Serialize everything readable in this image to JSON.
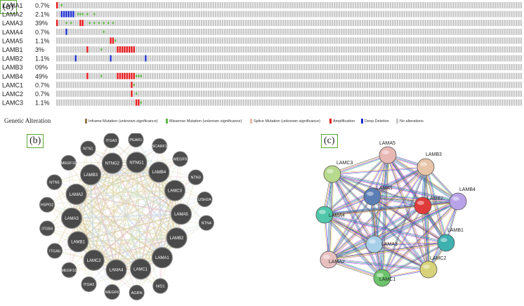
{
  "panels": {
    "a": "(a)",
    "b": "(b)",
    "c": "(c)"
  },
  "oncoprint": {
    "genes": [
      {
        "name": "LAMA1",
        "pct": "0.7%",
        "alts": [
          {
            "pos": 0,
            "type": "amp"
          },
          {
            "pos": 2,
            "type": "missense"
          }
        ]
      },
      {
        "name": "LAMA2",
        "pct": "2.1%",
        "alts": [
          {
            "pos": 2,
            "type": "deep"
          },
          {
            "pos": 3,
            "type": "deep"
          },
          {
            "pos": 4,
            "type": "deep"
          },
          {
            "pos": 5,
            "type": "deep"
          },
          {
            "pos": 6,
            "type": "deep"
          },
          {
            "pos": 7,
            "type": "deep"
          },
          {
            "pos": 9,
            "type": "missense"
          },
          {
            "pos": 10,
            "type": "missense"
          },
          {
            "pos": 11,
            "type": "missense"
          },
          {
            "pos": 13,
            "type": "missense"
          },
          {
            "pos": 16,
            "type": "missense"
          }
        ]
      },
      {
        "name": "LAMA3",
        "pct": "39%",
        "alts": [
          {
            "pos": 0,
            "type": "amp"
          },
          {
            "pos": 4,
            "type": "missense"
          },
          {
            "pos": 6,
            "type": "missense"
          },
          {
            "pos": 10,
            "type": "amp"
          },
          {
            "pos": 11,
            "type": "amp"
          },
          {
            "pos": 14,
            "type": "missense"
          },
          {
            "pos": 16,
            "type": "missense"
          },
          {
            "pos": 18,
            "type": "missense"
          },
          {
            "pos": 20,
            "type": "missense"
          },
          {
            "pos": 22,
            "type": "missense"
          },
          {
            "pos": 24,
            "type": "missense"
          }
        ]
      },
      {
        "name": "LAMA4",
        "pct": "0.7%",
        "alts": [
          {
            "pos": 4,
            "type": "deep"
          },
          {
            "pos": 20,
            "type": "missense"
          }
        ]
      },
      {
        "name": "LAMA5",
        "pct": "1.1%",
        "alts": [
          {
            "pos": 23,
            "type": "amp"
          },
          {
            "pos": 24,
            "type": "amp"
          },
          {
            "pos": 25,
            "type": "missense"
          }
        ]
      },
      {
        "name": "LAMB1",
        "pct": "3%",
        "alts": [
          {
            "pos": 13,
            "type": "amp"
          },
          {
            "pos": 19,
            "type": "missense"
          },
          {
            "pos": 26,
            "type": "amp"
          },
          {
            "pos": 27,
            "type": "amp"
          },
          {
            "pos": 28,
            "type": "amp"
          },
          {
            "pos": 29,
            "type": "amp"
          },
          {
            "pos": 30,
            "type": "amp"
          },
          {
            "pos": 31,
            "type": "amp"
          },
          {
            "pos": 32,
            "type": "amp"
          },
          {
            "pos": 33,
            "type": "amp"
          }
        ]
      },
      {
        "name": "LAMB2",
        "pct": "1.1%",
        "alts": [
          {
            "pos": 8,
            "type": "deep"
          },
          {
            "pos": 23,
            "type": "deep"
          },
          {
            "pos": 38,
            "type": "deep"
          }
        ]
      },
      {
        "name": "LAMB3",
        "pct": "09%",
        "alts": []
      },
      {
        "name": "LAMB4",
        "pct": "49%",
        "alts": [
          {
            "pos": 13,
            "type": "amp"
          },
          {
            "pos": 19,
            "type": "missense"
          },
          {
            "pos": 26,
            "type": "amp"
          },
          {
            "pos": 27,
            "type": "amp"
          },
          {
            "pos": 28,
            "type": "amp"
          },
          {
            "pos": 29,
            "type": "amp"
          },
          {
            "pos": 30,
            "type": "amp"
          },
          {
            "pos": 31,
            "type": "amp"
          },
          {
            "pos": 32,
            "type": "amp"
          },
          {
            "pos": 33,
            "type": "amp"
          },
          {
            "pos": 34,
            "type": "missense"
          },
          {
            "pos": 35,
            "type": "missense"
          },
          {
            "pos": 36,
            "type": "missense"
          }
        ]
      },
      {
        "name": "LAMC1",
        "pct": "0.7%",
        "alts": [
          {
            "pos": 32,
            "type": "amp"
          },
          {
            "pos": 33,
            "type": "missense"
          }
        ]
      },
      {
        "name": "LAMC2",
        "pct": "0.7%",
        "alts": [
          {
            "pos": 32,
            "type": "amp"
          },
          {
            "pos": 34,
            "type": "missense"
          }
        ]
      },
      {
        "name": "LAMC3",
        "pct": "1.1%",
        "alts": [
          {
            "pos": 34,
            "type": "amp"
          },
          {
            "pos": 35,
            "type": "amp"
          },
          {
            "pos": 36,
            "type": "missense"
          }
        ]
      }
    ],
    "legend": {
      "title": "Genetic Alteration",
      "items": [
        {
          "label": "Inframe Mutation (unknown significance)",
          "color": "#9a7b4f",
          "name": "inframe"
        },
        {
          "label": "Missense Mutation (unknown significance)",
          "color": "#5fb846",
          "name": "missense"
        },
        {
          "label": "Splice Mutation (unknown significance)",
          "color": "#e8b7a3",
          "name": "splice"
        },
        {
          "label": "Amplification",
          "color": "#e41a1c",
          "name": "amplification"
        },
        {
          "label": "Deep Deletion",
          "color": "#1e2fd0",
          "name": "deep-deletion"
        },
        {
          "label": "No alterations",
          "color": "#c8c8c8",
          "name": "no-alterations"
        }
      ]
    },
    "colors": {
      "none": "#c8c8c8",
      "amp": "#e41a1c",
      "deep": "#1e2fd0",
      "missense": "#5fb846"
    }
  },
  "network_b": {
    "center_nodes": [
      "NTNG2",
      "NTNG1",
      "LAMB4",
      "LAMC3",
      "LAMA5",
      "LAMB2",
      "LAMA1",
      "LAMC1",
      "LAMA4",
      "LAMC2",
      "LAMB1",
      "LAMA3",
      "LAMA2",
      "LAMB3"
    ],
    "outer_nodes": [
      "NID1",
      "AGRN",
      "MEGF6",
      "ITGA2",
      "MEGF10",
      "ITGA6",
      "ITGB4",
      "HSPG2",
      "NTN5",
      "MEGF11",
      "NTN1",
      "ITGA3",
      "PEAR1",
      "SCARF1",
      "MEGF9",
      "NTN3",
      "USH2A",
      "NTN4"
    ]
  },
  "network_c": {
    "nodes": [
      {
        "label": "LAMA5",
        "color": "#e8b7b3"
      },
      {
        "label": "LAMB3",
        "color": "#e8c4a8"
      },
      {
        "label": "LAMC3",
        "color": "#b7d98b"
      },
      {
        "label": "LAMA1",
        "color": "#5b7fb5"
      },
      {
        "label": "LAMB2",
        "color": "#e03b3b"
      },
      {
        "label": "LAMB4",
        "color": "#b9a3e8"
      },
      {
        "label": "LAMA4",
        "color": "#4fc7a8"
      },
      {
        "label": "LAMB1",
        "color": "#3eb0b0"
      },
      {
        "label": "LAMA3",
        "color": "#a8cfe8"
      },
      {
        "label": "LAMA2",
        "color": "#e8c0c0"
      },
      {
        "label": "LAMC2",
        "color": "#d8d27a"
      },
      {
        "label": "LAMC1",
        "color": "#6cc46c"
      }
    ]
  }
}
